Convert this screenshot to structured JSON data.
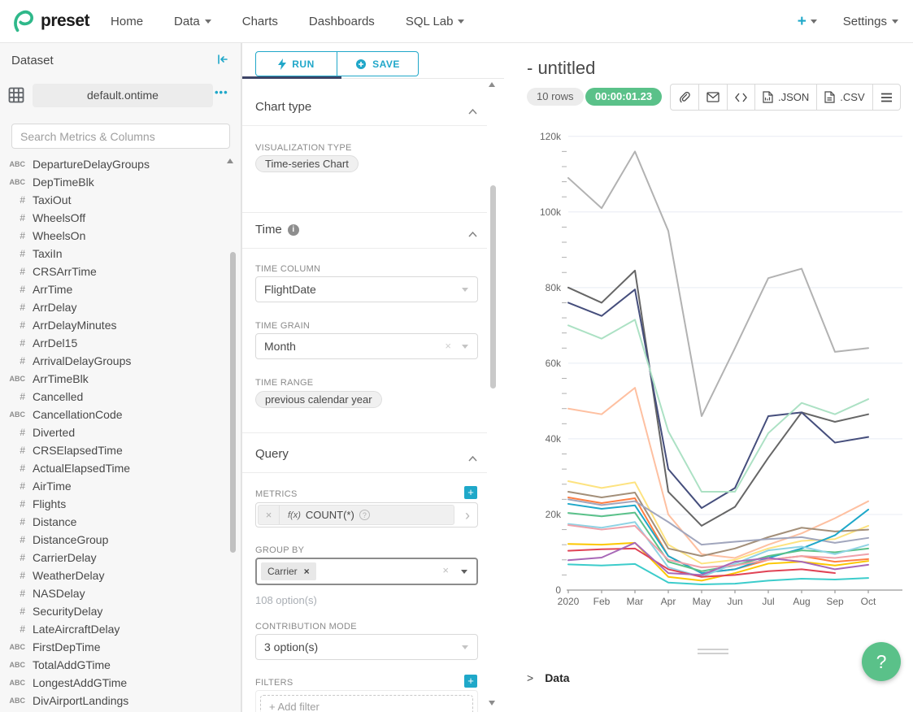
{
  "colors": {
    "accent": "#20A7C9",
    "success_green": "#5AC189",
    "tab_inkbar": "#3D4466"
  },
  "navbar": {
    "brand": "preset",
    "items": [
      {
        "label": "Home",
        "caret": false
      },
      {
        "label": "Data",
        "caret": true
      },
      {
        "label": "Charts",
        "caret": false
      },
      {
        "label": "Dashboards",
        "caret": false
      },
      {
        "label": "SQL Lab",
        "caret": true
      }
    ],
    "plus_label": "+",
    "settings_label": "Settings"
  },
  "dataset_panel": {
    "title": "Dataset",
    "dataset_name": "default.ontime",
    "search_placeholder": "Search Metrics & Columns",
    "columns": [
      {
        "type": "ABC",
        "name": "DepartureDelayGroups"
      },
      {
        "type": "ABC",
        "name": "DepTimeBlk"
      },
      {
        "type": "#",
        "name": "TaxiOut"
      },
      {
        "type": "#",
        "name": "WheelsOff"
      },
      {
        "type": "#",
        "name": "WheelsOn"
      },
      {
        "type": "#",
        "name": "TaxiIn"
      },
      {
        "type": "#",
        "name": "CRSArrTime"
      },
      {
        "type": "#",
        "name": "ArrTime"
      },
      {
        "type": "#",
        "name": "ArrDelay"
      },
      {
        "type": "#",
        "name": "ArrDelayMinutes"
      },
      {
        "type": "#",
        "name": "ArrDel15"
      },
      {
        "type": "#",
        "name": "ArrivalDelayGroups"
      },
      {
        "type": "ABC",
        "name": "ArrTimeBlk"
      },
      {
        "type": "#",
        "name": "Cancelled"
      },
      {
        "type": "ABC",
        "name": "CancellationCode"
      },
      {
        "type": "#",
        "name": "Diverted"
      },
      {
        "type": "#",
        "name": "CRSElapsedTime"
      },
      {
        "type": "#",
        "name": "ActualElapsedTime"
      },
      {
        "type": "#",
        "name": "AirTime"
      },
      {
        "type": "#",
        "name": "Flights"
      },
      {
        "type": "#",
        "name": "Distance"
      },
      {
        "type": "#",
        "name": "DistanceGroup"
      },
      {
        "type": "#",
        "name": "CarrierDelay"
      },
      {
        "type": "#",
        "name": "WeatherDelay"
      },
      {
        "type": "#",
        "name": "NASDelay"
      },
      {
        "type": "#",
        "name": "SecurityDelay"
      },
      {
        "type": "#",
        "name": "LateAircraftDelay"
      },
      {
        "type": "ABC",
        "name": "FirstDepTime"
      },
      {
        "type": "ABC",
        "name": "TotalAddGTime"
      },
      {
        "type": "ABC",
        "name": "LongestAddGTime"
      },
      {
        "type": "ABC",
        "name": "DivAirportLandings"
      }
    ]
  },
  "control_panel": {
    "run_label": "RUN",
    "save_label": "SAVE",
    "chart_type": {
      "title": "Chart type",
      "viz_label": "VISUALIZATION TYPE",
      "viz_value": "Time-series Chart"
    },
    "time": {
      "title": "Time",
      "column_label": "TIME COLUMN",
      "column_value": "FlightDate",
      "grain_label": "TIME GRAIN",
      "grain_value": "Month",
      "range_label": "TIME RANGE",
      "range_value": "previous calendar year"
    },
    "query": {
      "title": "Query",
      "metrics_label": "METRICS",
      "metric_fx": "f(x)",
      "metric_value": "COUNT(*)",
      "group_by_label": "GROUP BY",
      "group_by_tag": "Carrier",
      "group_by_hint": "108 option(s)",
      "contribution_label": "CONTRIBUTION MODE",
      "contribution_value": "3 option(s)",
      "filters_label": "FILTERS",
      "add_filter_label": "Add filter"
    }
  },
  "chart_panel": {
    "title": "- untitled",
    "rows_badge": "10 rows",
    "timer_badge": "00:00:01.23",
    "json_label": ".JSON",
    "csv_label": ".CSV",
    "data_section_label": "Data",
    "help_label": "?"
  },
  "chart_data": {
    "type": "line",
    "title": "",
    "x_categories": [
      "2020",
      "Feb",
      "Mar",
      "Apr",
      "May",
      "Jun",
      "Jul",
      "Aug",
      "Sep",
      "Oct"
    ],
    "y_ticks": [
      "0",
      "20k",
      "40k",
      "60k",
      "80k",
      "100k",
      "120k"
    ],
    "ylim": [
      0,
      120000
    ],
    "grid": true,
    "legend": "none",
    "values_unit": "thousands",
    "series": [
      {
        "name": "series-01",
        "color": "#B2B2B2",
        "values": [
          109,
          101,
          116,
          95,
          46,
          64,
          82.5,
          85,
          63,
          64
        ]
      },
      {
        "name": "series-02",
        "color": "#666666",
        "values": [
          80,
          76,
          84.5,
          26,
          17,
          22,
          35,
          47,
          44.5,
          46.5
        ]
      },
      {
        "name": "series-03",
        "color": "#454E7C",
        "values": [
          76,
          72.5,
          79.5,
          32,
          21.7,
          27,
          46,
          47,
          39,
          40.5
        ]
      },
      {
        "name": "series-04",
        "color": "#ACE1C4",
        "values": [
          70,
          66.5,
          71.5,
          42,
          26,
          26,
          41.5,
          49.5,
          46.5,
          50.5
        ]
      },
      {
        "name": "series-05",
        "color": "#FEC0A1",
        "values": [
          48,
          46.5,
          53.5,
          20,
          9.5,
          8.5,
          12,
          15,
          19,
          23.5
        ]
      },
      {
        "name": "series-06",
        "color": "#FDE380",
        "values": [
          28.8,
          27,
          28.5,
          12,
          7,
          8,
          11,
          13,
          13.5,
          17
        ]
      },
      {
        "name": "series-07",
        "color": "#A38F79",
        "values": [
          26,
          24.5,
          25.8,
          11,
          9,
          11,
          14,
          16.5,
          15.5,
          16
        ]
      },
      {
        "name": "series-08",
        "color": "#FF7F44",
        "values": [
          24.5,
          23,
          24.3,
          9,
          4.5,
          5.5,
          8,
          9,
          7.5,
          8.2
        ]
      },
      {
        "name": "series-09",
        "color": "#A1A6BD",
        "values": [
          24,
          22.5,
          23.5,
          18,
          12,
          12.8,
          13.5,
          14,
          12.5,
          13.8
        ]
      },
      {
        "name": "series-10",
        "color": "#1FA8C9",
        "values": [
          22.8,
          21.5,
          22.4,
          9,
          4.5,
          5.5,
          8.5,
          11,
          14.5,
          21.3
        ]
      },
      {
        "name": "series-11",
        "color": "#5AC189",
        "values": [
          20.4,
          19.5,
          20.5,
          7.5,
          5,
          6.5,
          9,
          10.5,
          10,
          11
        ]
      },
      {
        "name": "series-12",
        "color": "#8FD3E4",
        "values": [
          17.5,
          16.5,
          18,
          6,
          3.5,
          7,
          10.5,
          11.5,
          9.5,
          12
        ]
      },
      {
        "name": "series-13",
        "color": "#EFA1AA",
        "values": [
          17.2,
          16,
          17,
          8,
          6,
          6.5,
          8,
          9,
          8.5,
          9.5
        ]
      },
      {
        "name": "series-14",
        "color": "#FCC700",
        "values": [
          12.2,
          12,
          12.5,
          3.5,
          2.5,
          4.5,
          7,
          7.5,
          6.5,
          7.7
        ]
      },
      {
        "name": "series-15",
        "color": "#E04355",
        "values": [
          10.4,
          10.8,
          11,
          5.5,
          3.5,
          4,
          5,
          5.5,
          4.5,
          null
        ]
      },
      {
        "name": "series-16",
        "color": "#A868B7",
        "values": [
          7.9,
          8.6,
          12.5,
          4.5,
          4,
          7.5,
          8.5,
          7.5,
          5.5,
          6.7
        ]
      },
      {
        "name": "series-17",
        "color": "#3CCCCB",
        "values": [
          6.8,
          6.5,
          6.9,
          2,
          1.5,
          1.7,
          2.5,
          3,
          2.8,
          3.2
        ]
      }
    ]
  }
}
